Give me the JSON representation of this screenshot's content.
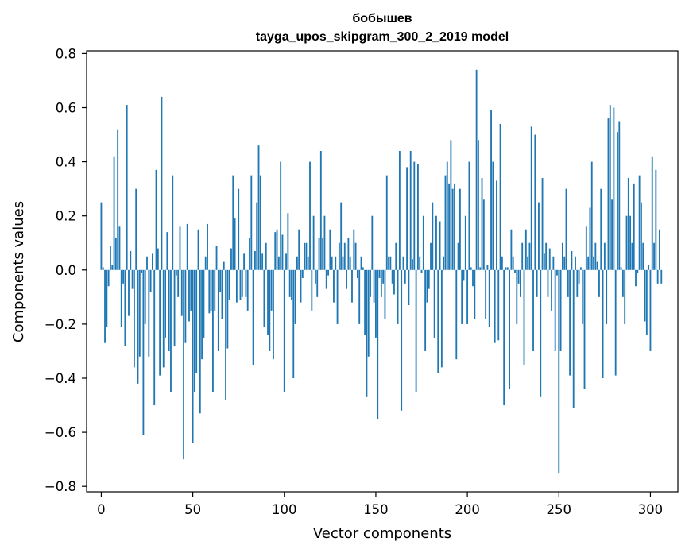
{
  "chart_data": {
    "type": "bar",
    "title": "бобышев",
    "subtitle": "tayga_upos_skipgram_300_2_2019 model",
    "xlabel": "Vector components",
    "ylabel": "Components values",
    "xlim": [
      -8,
      315
    ],
    "ylim": [
      -0.82,
      0.81
    ],
    "xticks": [
      0,
      50,
      100,
      150,
      200,
      250,
      300
    ],
    "yticks": [
      -0.8,
      -0.6,
      -0.4,
      -0.2,
      0.0,
      0.2,
      0.4,
      0.6,
      0.8
    ],
    "ytick_labels": [
      "−0.8",
      "−0.6",
      "−0.4",
      "−0.2",
      "0.0",
      "0.2",
      "0.4",
      "0.6",
      "0.8"
    ],
    "bar_color": "#1f77b4",
    "values": [
      0.25,
      0.01,
      -0.27,
      -0.21,
      -0.06,
      0.09,
      0.02,
      0.42,
      0.12,
      0.52,
      0.16,
      -0.21,
      -0.05,
      -0.28,
      0.61,
      -0.17,
      0.07,
      -0.07,
      -0.36,
      0.3,
      -0.42,
      -0.32,
      -0.01,
      -0.61,
      -0.2,
      0.05,
      -0.32,
      -0.08,
      0.06,
      -0.5,
      0.37,
      0.08,
      -0.39,
      0.64,
      -0.36,
      -0.25,
      0.14,
      -0.3,
      -0.45,
      0.35,
      -0.28,
      -0.02,
      -0.1,
      0.16,
      -0.17,
      -0.7,
      -0.27,
      0.17,
      -0.19,
      -0.15,
      -0.64,
      -0.45,
      -0.38,
      0.15,
      -0.53,
      -0.33,
      -0.25,
      0.05,
      0.17,
      -0.16,
      -0.15,
      -0.45,
      -0.15,
      0.09,
      -0.3,
      -0.08,
      -0.18,
      0.03,
      -0.48,
      -0.29,
      -0.11,
      0.08,
      0.35,
      0.19,
      -0.12,
      0.3,
      -0.11,
      -0.1,
      0.06,
      -0.1,
      -0.15,
      0.12,
      0.35,
      -0.35,
      0.07,
      0.25,
      0.46,
      0.35,
      0.06,
      -0.21,
      0.1,
      -0.24,
      -0.3,
      -0.15,
      -0.33,
      0.14,
      0.15,
      0.05,
      0.4,
      0.13,
      -0.45,
      0.06,
      0.21,
      -0.1,
      -0.11,
      -0.4,
      -0.2,
      0.05,
      0.15,
      -0.12,
      -0.03,
      0.1,
      0.1,
      0.05,
      0.4,
      -0.15,
      0.2,
      -0.05,
      -0.1,
      0.12,
      0.44,
      0.12,
      0.2,
      -0.07,
      -0.02,
      0.15,
      0.05,
      -0.12,
      0.05,
      -0.2,
      0.1,
      0.25,
      0.05,
      0.1,
      -0.07,
      0.12,
      0.05,
      -0.12,
      0.15,
      0.1,
      -0.03,
      -0.2,
      0.05,
      0.01,
      -0.24,
      -0.47,
      -0.32,
      -0.1,
      0.2,
      -0.12,
      -0.25,
      -0.55,
      -0.03,
      -0.1,
      -0.05,
      -0.18,
      0.35,
      0.05,
      0.05,
      -0.05,
      -0.09,
      0.1,
      -0.2,
      0.44,
      -0.52,
      0.05,
      -0.05,
      0.38,
      -0.13,
      0.44,
      0.04,
      0.4,
      -0.45,
      0.39,
      0.05,
      -0.01,
      0.2,
      -0.3,
      -0.12,
      -0.07,
      0.1,
      0.25,
      -0.25,
      0.2,
      -0.38,
      0.18,
      -0.36,
      0.05,
      0.35,
      0.4,
      0.32,
      0.48,
      0.3,
      0.32,
      -0.33,
      0.1,
      0.3,
      -0.2,
      -0.04,
      0.2,
      -0.2,
      0.4,
      0.01,
      -0.06,
      -0.18,
      0.74,
      0.48,
      0.01,
      0.34,
      0.26,
      -0.18,
      0.02,
      -0.21,
      0.59,
      0.4,
      -0.27,
      0.33,
      -0.26,
      0.54,
      0.05,
      -0.5,
      0.01,
      0.01,
      -0.44,
      0.15,
      0.05,
      -0.01,
      -0.2,
      -0.05,
      -0.1,
      0.1,
      -0.35,
      0.15,
      0.05,
      0.1,
      0.53,
      -0.3,
      0.5,
      -0.1,
      0.25,
      -0.47,
      0.34,
      0.06,
      0.1,
      -0.1,
      0.08,
      -0.15,
      0.05,
      -0.3,
      -0.02,
      -0.75,
      -0.3,
      0.1,
      0.05,
      0.3,
      -0.1,
      -0.39,
      0.07,
      -0.51,
      0.05,
      -0.1,
      -0.05,
      0.01,
      -0.2,
      -0.44,
      0.16,
      0.05,
      0.23,
      0.4,
      0.05,
      0.1,
      0.03,
      -0.1,
      0.3,
      -0.4,
      0.1,
      -0.2,
      0.56,
      0.61,
      0.26,
      0.6,
      -0.39,
      0.51,
      0.55,
      0.01,
      -0.1,
      -0.2,
      0.2,
      0.34,
      0.2,
      0.1,
      0.32,
      -0.06,
      -0.01,
      0.35,
      0.25,
      0.1,
      -0.19,
      -0.24,
      0.02,
      -0.3,
      0.42,
      0.1,
      0.37,
      -0.05,
      0.15,
      -0.05
    ]
  }
}
